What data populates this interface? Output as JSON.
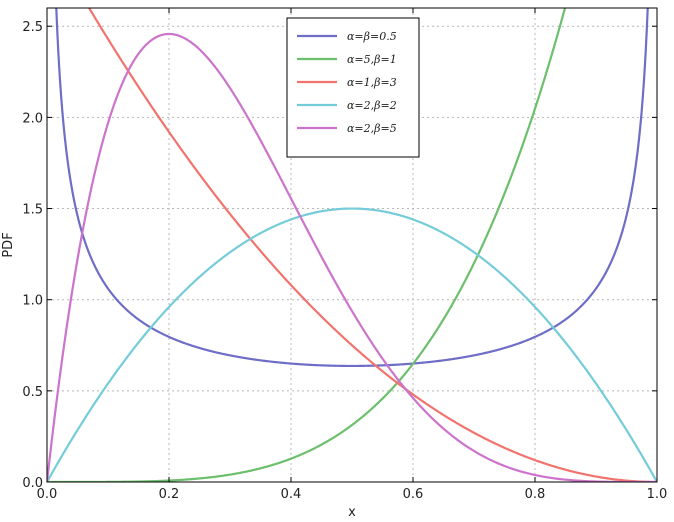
{
  "chart_data": {
    "type": "line",
    "title": "",
    "xlabel": "x",
    "ylabel": "PDF",
    "xlim": [
      0.0,
      1.0
    ],
    "ylim": [
      0.0,
      2.6
    ],
    "xticks": [
      "0.0",
      "0.2",
      "0.4",
      "0.6",
      "0.8",
      "1.0"
    ],
    "yticks": [
      "0.0",
      "0.5",
      "1.0",
      "1.5",
      "2.0",
      "2.5"
    ],
    "grid": true,
    "legend_position": "top-center",
    "series": [
      {
        "name": "α=β=0.5",
        "alpha": 0.5,
        "beta": 0.5,
        "color": "#6e6ec8"
      },
      {
        "name": "α=5,β=1",
        "alpha": 5,
        "beta": 1,
        "color": "#6cbf6c"
      },
      {
        "name": "α=1,β=3",
        "alpha": 1,
        "beta": 3,
        "color": "#f2736d"
      },
      {
        "name": "α=2,β=2",
        "alpha": 2,
        "beta": 2,
        "color": "#74ccd8"
      },
      {
        "name": "α=2,β=5",
        "alpha": 2,
        "beta": 5,
        "color": "#cc74cc"
      }
    ]
  }
}
